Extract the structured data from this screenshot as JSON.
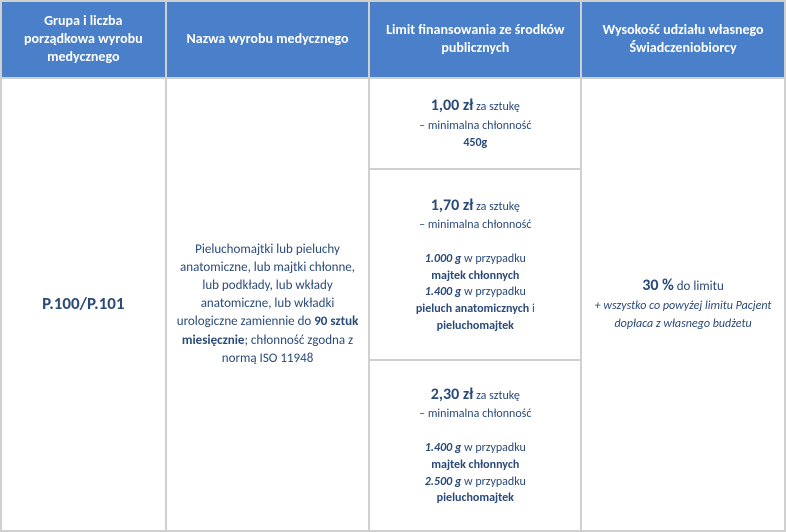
{
  "headers": {
    "col1": "Grupa i liczba porządkowa wyrobu medycznego",
    "col2": "Nazwa wyrobu medycznego",
    "col3": "Limit finansowania ze środków publicznych",
    "col4": "Wysokość udziału własnego Świadczeniobiorcy"
  },
  "code": "P.100/P.101",
  "description": {
    "part1": "Pieluchomajtki lub pieluchy anatomiczne, lub majtki chłonne, lub podkłady, lub wkłady anatomiczne, lub wkładki urologiczne zamiennie do ",
    "bold1": "90 sztuk miesięcznie",
    "part2": "; chłonność zgodna z normą ISO 11948"
  },
  "limits": [
    {
      "price": "1,00 zł",
      "unit": " za sztukę",
      "minLabel": "– minimalna chłonność",
      "value": "450g"
    },
    {
      "price": "1,70 zł",
      "unit": " za sztukę",
      "minLabel": "– minimalna chłonność",
      "g1": "1.000 g",
      "c1": " w przypadku ",
      "t1": "majtek chłonnych",
      "g2": "1.400 g",
      "c2": " w przypadku ",
      "t2a": "pieluch anatomicznych",
      "and": " i ",
      "t2b": "pieluchomajtek"
    },
    {
      "price": "2,30 zł",
      "unit": " za sztukę",
      "minLabel": "– minimalna chłonność",
      "g1": "1.400 g",
      "c1": " w przypadku ",
      "t1": "majtek chłonnych",
      "g2": "2.500 g",
      "c2": " w przypadku ",
      "t2": "pieluchomajtek"
    }
  ],
  "share": {
    "main": "30 %",
    "mainSuffix": " do limitu",
    "sub": "+ wszystko co powyżej limitu Pacjent dopłaca z własnego budżetu"
  },
  "colors": {
    "headerBg": "#4a7fc9",
    "headerText": "#ffffff",
    "border": "#d0d0d0",
    "bodyText": "#2a4a7a"
  }
}
